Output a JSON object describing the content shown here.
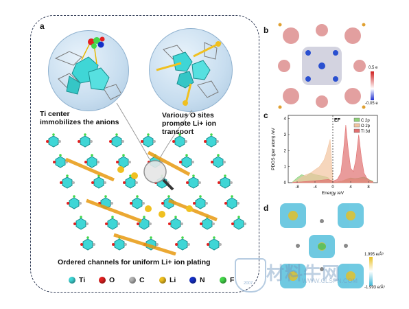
{
  "panel_a": {
    "label": "a",
    "caption_left": "Ti  center\nimmobilizes the anions",
    "caption_right": "Various O sites\npromote Li+ ion\ntransport",
    "caption_bottom": "Ordered channels for uniform Li+ ion plating",
    "legend": [
      {
        "symbol": "Ti",
        "color": "#3fd6d6"
      },
      {
        "symbol": "O",
        "color": "#e32020"
      },
      {
        "symbol": "C",
        "color": "#b3b3b3"
      },
      {
        "symbol": "Li",
        "color": "#f0c020"
      },
      {
        "symbol": "N",
        "color": "#1530c8"
      },
      {
        "symbol": "F",
        "color": "#44d84a"
      }
    ]
  },
  "panel_b": {
    "label": "b",
    "colorbar_max": "0.5 e",
    "colorbar_min": "-0.05 e"
  },
  "panel_c": {
    "label": "c",
    "fermi_label": "EF",
    "chart_data": {
      "type": "area",
      "xlabel": "Energy /eV",
      "ylabel": "PDOS (per atom) /eV",
      "xlim": [
        -10,
        10
      ],
      "ylim": [
        0,
        4.2
      ],
      "x_ticks": [
        -8,
        -4,
        0,
        4,
        8
      ],
      "y_ticks": [
        0,
        1,
        2,
        3,
        4
      ],
      "legend_position": "top-right",
      "series": [
        {
          "name": "C 2p",
          "color": "#8fd07a",
          "x": [
            -9,
            -8,
            -7,
            -6,
            -5,
            -4,
            -3,
            -2,
            -1,
            -0.5,
            0,
            1,
            2,
            3,
            4,
            5,
            6,
            7,
            8,
            9
          ],
          "y": [
            0.05,
            0.3,
            0.5,
            0.4,
            0.6,
            0.5,
            0.45,
            0.4,
            0.3,
            0.1,
            0.05,
            0.05,
            0.1,
            0.2,
            0.3,
            0.25,
            0.3,
            0.35,
            0.2,
            0.1
          ]
        },
        {
          "name": "O 2p",
          "color": "#f2c4a0",
          "x": [
            -9,
            -8,
            -7,
            -6,
            -5,
            -4,
            -3,
            -2,
            -1.5,
            -1,
            -0.6,
            -0.3,
            0,
            1,
            2,
            3,
            4,
            5,
            6,
            7,
            8,
            9
          ],
          "y": [
            0.02,
            0.15,
            0.35,
            0.5,
            0.6,
            0.8,
            1.0,
            1.4,
            1.8,
            2.3,
            2.7,
            1.5,
            0.05,
            0.05,
            0.1,
            0.2,
            0.25,
            0.2,
            0.25,
            0.2,
            0.1,
            0.05
          ]
        },
        {
          "name": "Ti 3d",
          "color": "#e07070",
          "x": [
            -9,
            -7,
            -5,
            -3,
            -1,
            0,
            1,
            1.8,
            2.4,
            2.9,
            3.4,
            4.0,
            4.6,
            5.2,
            5.8,
            6.4,
            7.0,
            7.6,
            8.2,
            9
          ],
          "y": [
            0.02,
            0.05,
            0.1,
            0.15,
            0.2,
            0.1,
            0.2,
            0.6,
            2.0,
            3.6,
            2.2,
            0.9,
            0.7,
            1.5,
            3.0,
            1.6,
            0.6,
            0.3,
            0.15,
            0.05
          ]
        }
      ]
    }
  },
  "panel_d": {
    "label": "d",
    "colorbar_max": "1.995 e/Å³",
    "colorbar_min": "-1.993 e/Å³"
  },
  "watermark": {
    "text": "材料牛网",
    "url": "WWW.CLSPN.COM",
    "year": "2007"
  },
  "colors": {
    "ti": "#3fd6d6",
    "li": "#f0c020",
    "frame": "#2a3550"
  }
}
